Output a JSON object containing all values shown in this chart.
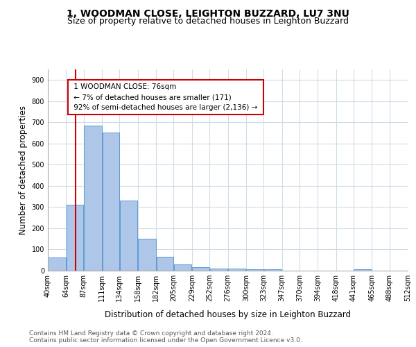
{
  "title_line1": "1, WOODMAN CLOSE, LEIGHTON BUZZARD, LU7 3NU",
  "title_line2": "Size of property relative to detached houses in Leighton Buzzard",
  "xlabel": "Distribution of detached houses by size in Leighton Buzzard",
  "ylabel": "Number of detached properties",
  "footer_line1": "Contains HM Land Registry data © Crown copyright and database right 2024.",
  "footer_line2": "Contains public sector information licensed under the Open Government Licence v3.0.",
  "annotation_line1": "1 WOODMAN CLOSE: 76sqm",
  "annotation_line2": "← 7% of detached houses are smaller (171)",
  "annotation_line3": "92% of semi-detached houses are larger (2,136) →",
  "property_size": 76,
  "bar_edges": [
    40,
    64,
    87,
    111,
    134,
    158,
    182,
    205,
    229,
    252,
    276,
    300,
    323,
    347,
    370,
    394,
    418,
    441,
    465,
    488,
    512
  ],
  "bar_heights": [
    62,
    311,
    684,
    652,
    330,
    150,
    65,
    30,
    18,
    11,
    9,
    8,
    5,
    0,
    0,
    0,
    0,
    8,
    0,
    0,
    0
  ],
  "bar_color": "#aec6e8",
  "bar_edge_color": "#5b9bd5",
  "vline_color": "#cc0000",
  "vline_x": 76,
  "annotation_box_color": "#cc0000",
  "annotation_box_fill": "#ffffff",
  "ylim": [
    0,
    950
  ],
  "yticks": [
    0,
    100,
    200,
    300,
    400,
    500,
    600,
    700,
    800,
    900
  ],
  "background_color": "#ffffff",
  "grid_color": "#d0dce8",
  "title_fontsize": 10,
  "subtitle_fontsize": 9,
  "tick_label_fontsize": 7,
  "axis_label_fontsize": 8.5,
  "annotation_fontsize": 7.5,
  "footer_fontsize": 6.5
}
